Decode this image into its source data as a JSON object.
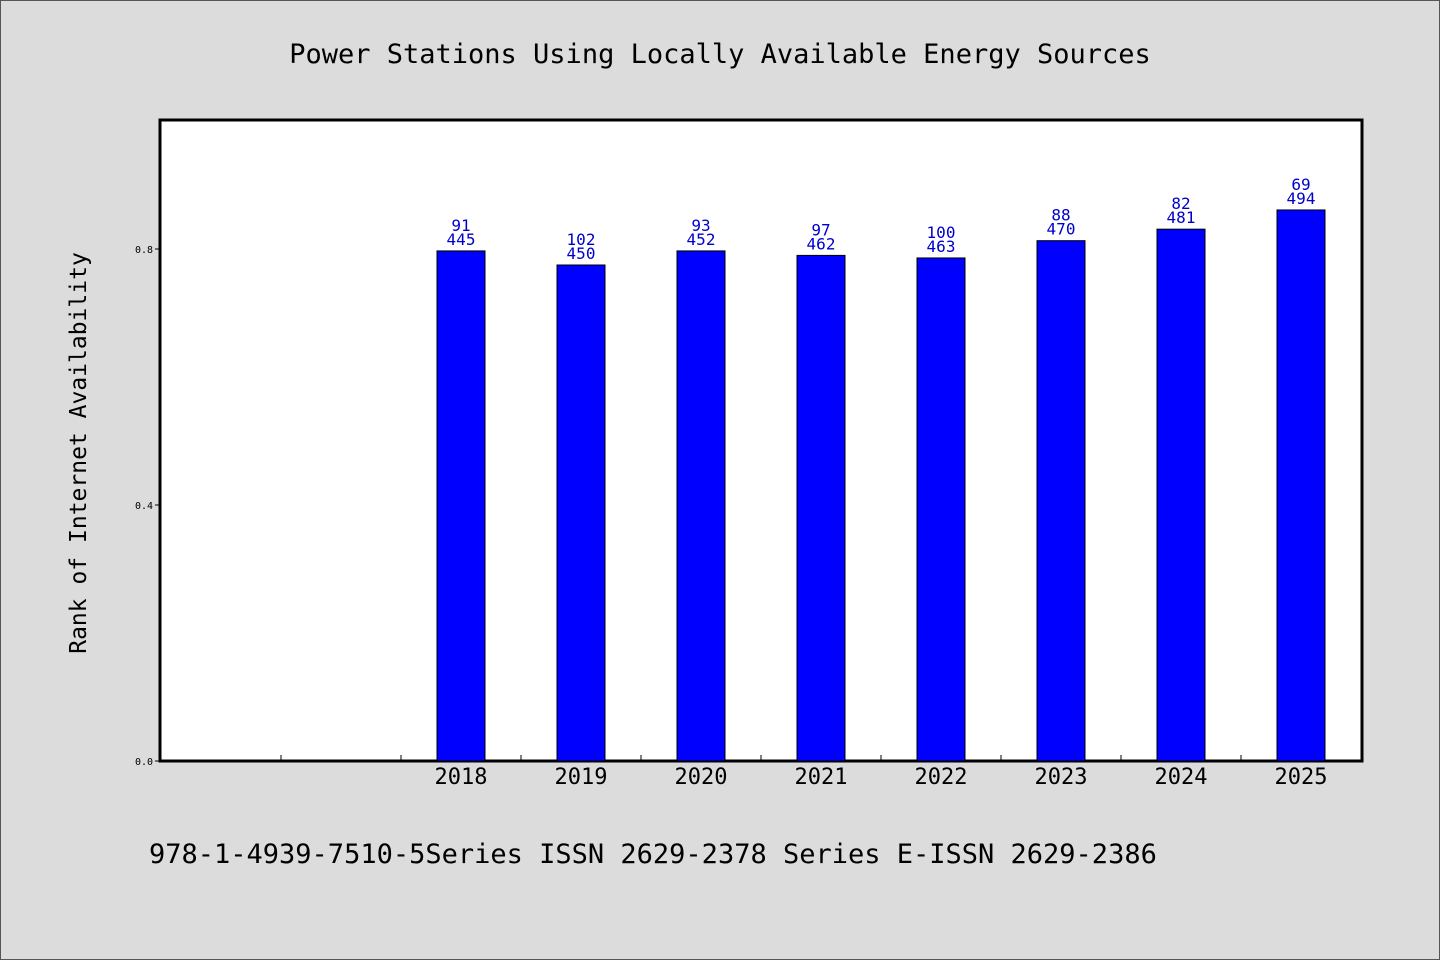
{
  "chart_data": {
    "type": "bar",
    "title": "Power Stations Using Locally Available Energy Sources",
    "ylabel": "Rank of Internet Availability",
    "xlabel": "",
    "footer": "978-1-4939-7510-5Series ISSN 2629-2378 Series E-ISSN 2629-2386",
    "categories": [
      "2018",
      "2019",
      "2020",
      "2021",
      "2022",
      "2023",
      "2024",
      "2025"
    ],
    "values": [
      0.797,
      0.775,
      0.797,
      0.79,
      0.786,
      0.813,
      0.831,
      0.861
    ],
    "label_top": [
      "91",
      "102",
      "93",
      "97",
      "100",
      "88",
      "82",
      "69"
    ],
    "label_bottom": [
      "445",
      "450",
      "452",
      "462",
      "463",
      "470",
      "481",
      "494"
    ],
    "ylim": [
      0,
      1.0
    ],
    "yticks": [
      0.0,
      0.4,
      0.8
    ],
    "ytick_labels": [
      "0.0",
      "0.4",
      "0.8"
    ],
    "x_slots": 10,
    "first_category_slot": 2,
    "bar_color": "#0000ff",
    "label_color": "#0000cc",
    "background_color": "#dcdcdc",
    "plot_background": "#ffffff",
    "grid": false,
    "legend": "none"
  }
}
